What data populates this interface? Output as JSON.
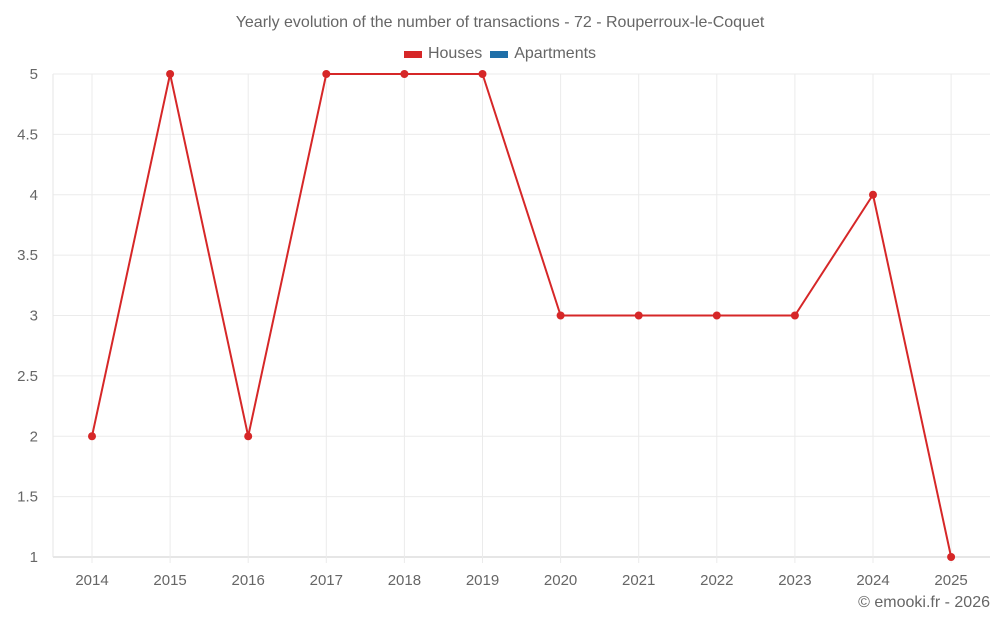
{
  "title": "Yearly evolution of the number of transactions - 72 - Rouperroux-le-Coquet",
  "legend": [
    {
      "label": "Houses",
      "color": "#d62728"
    },
    {
      "label": "Apartments",
      "color": "#1f6fa8"
    }
  ],
  "credit": "© emooki.fr - 2026",
  "chart_data": {
    "type": "line",
    "title": "Yearly evolution of the number of transactions - 72 - Rouperroux-le-Coquet",
    "xlabel": "",
    "ylabel": "",
    "x": [
      "2014",
      "2015",
      "2016",
      "2017",
      "2018",
      "2019",
      "2020",
      "2021",
      "2022",
      "2023",
      "2024",
      "2025"
    ],
    "series": [
      {
        "name": "Houses",
        "color": "#d62728",
        "values": [
          2,
          5,
          2,
          5,
          5,
          5,
          3,
          3,
          3,
          3,
          4,
          1
        ]
      },
      {
        "name": "Apartments",
        "color": "#1f6fa8",
        "values": []
      }
    ],
    "ylim": [
      1,
      5
    ],
    "yticks": [
      "1",
      "1.5",
      "2",
      "2.5",
      "3",
      "3.5",
      "4",
      "4.5",
      "5"
    ],
    "grid": true,
    "legend_position": "top"
  }
}
